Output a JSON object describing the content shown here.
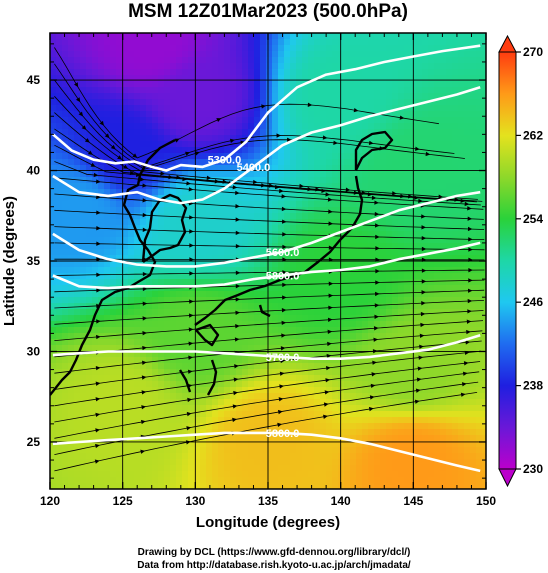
{
  "chart_data": {
    "type": "heatmap",
    "title": "MSM 12Z01Mar2023 (500.0hPa)",
    "xlabel": "Longitude (degrees)",
    "ylabel": "Latitude  (degrees)",
    "xlim": [
      120,
      150
    ],
    "ylim": [
      22.4,
      47.6
    ],
    "x_ticks": [
      "120",
      "125",
      "130",
      "135",
      "140",
      "145",
      "150"
    ],
    "y_ticks": [
      "25",
      "30",
      "35",
      "40",
      "45"
    ],
    "colorbar": {
      "min": 230,
      "max": 270,
      "ticks": [
        "230",
        "238",
        "246",
        "254",
        "262",
        "270"
      ],
      "extend": "both"
    },
    "grid": true,
    "field_samples": [
      {
        "lon": 127,
        "lat": 47,
        "value": 232
      },
      {
        "lon": 130,
        "lat": 44,
        "value": 234
      },
      {
        "lon": 125,
        "lat": 41,
        "value": 238
      },
      {
        "lon": 140,
        "lat": 44,
        "value": 250
      },
      {
        "lon": 145,
        "lat": 40,
        "value": 252
      },
      {
        "lon": 130,
        "lat": 37,
        "value": 248
      },
      {
        "lon": 122,
        "lat": 38,
        "value": 244
      },
      {
        "lon": 140,
        "lat": 34,
        "value": 254
      },
      {
        "lon": 130,
        "lat": 31,
        "value": 256
      },
      {
        "lon": 145,
        "lat": 29,
        "value": 258
      },
      {
        "lon": 125,
        "lat": 27,
        "value": 260
      },
      {
        "lon": 135,
        "lat": 25,
        "value": 264
      },
      {
        "lon": 145,
        "lat": 24,
        "value": 266
      }
    ],
    "contours": [
      {
        "label": "5300.0",
        "lon": [
          120.2,
          121.5,
          123,
          124.5,
          125.8,
          127,
          128,
          129,
          130.5,
          132,
          133.5,
          135,
          137,
          139,
          141,
          143,
          145,
          147,
          149.6
        ],
        "lat": [
          42.0,
          41.1,
          40.6,
          40.4,
          40.5,
          40.2,
          40.0,
          40.3,
          40.2,
          40.6,
          41.6,
          43.2,
          44.6,
          45.3,
          45.6,
          46.0,
          46.3,
          46.6,
          46.9
        ]
      },
      {
        "label": "5400.0",
        "lon": [
          120.2,
          122,
          124,
          126,
          127.5,
          129,
          130.5,
          132,
          134,
          136,
          138,
          140,
          142,
          144,
          146,
          148,
          149.6
        ],
        "lat": [
          39.7,
          38.8,
          38.6,
          38.8,
          38.4,
          38.2,
          38.4,
          39.0,
          40.2,
          41.4,
          42.1,
          42.5,
          43.0,
          43.4,
          43.8,
          44.2,
          44.6
        ]
      },
      {
        "label": "5600.0",
        "lon": [
          120.2,
          122,
          124,
          126,
          128,
          130,
          132,
          134,
          136,
          138,
          140,
          142,
          144,
          146,
          148,
          149.6
        ],
        "lat": [
          36.5,
          35.6,
          35.1,
          34.8,
          34.7,
          34.7,
          34.9,
          35.2,
          35.5,
          36.0,
          36.6,
          37.2,
          37.8,
          38.2,
          38.6,
          38.8
        ]
      },
      {
        "label": "5800.0",
        "lon": [
          120.2,
          122,
          124,
          126,
          128,
          130,
          132,
          134,
          136,
          138,
          140,
          142,
          144,
          146,
          148,
          149.6
        ],
        "lat": [
          34.2,
          33.6,
          33.5,
          33.6,
          33.6,
          33.6,
          33.7,
          34.0,
          34.2,
          34.4,
          34.5,
          34.7,
          35.1,
          35.4,
          35.7,
          36.0
        ]
      },
      {
        "label": "5700.0",
        "lon": [
          120.2,
          122,
          124,
          126,
          128,
          130,
          132,
          134,
          136,
          138,
          140,
          142,
          144,
          146,
          148,
          149.6
        ],
        "lat": [
          29.8,
          29.9,
          30.0,
          30.0,
          30.0,
          30.0,
          29.9,
          29.8,
          29.7,
          29.6,
          29.6,
          29.7,
          29.9,
          30.1,
          30.5,
          30.9
        ]
      },
      {
        "label": "5800.0",
        "lon": [
          120.2,
          122,
          124,
          126,
          128,
          130,
          132,
          134,
          136,
          138,
          140,
          142,
          144,
          146,
          148,
          149.6
        ],
        "lat": [
          24.9,
          25.0,
          25.1,
          25.2,
          25.3,
          25.4,
          25.5,
          25.5,
          25.5,
          25.4,
          25.2,
          24.9,
          24.5,
          24.1,
          23.7,
          23.4
        ]
      }
    ]
  },
  "credits": {
    "line1": "Drawing by DCL (https://www.gfd-dennou.org/library/dcl/)",
    "line2": "Data from http://database.rish.kyoto-u.ac.jp/arch/jmadata/"
  }
}
